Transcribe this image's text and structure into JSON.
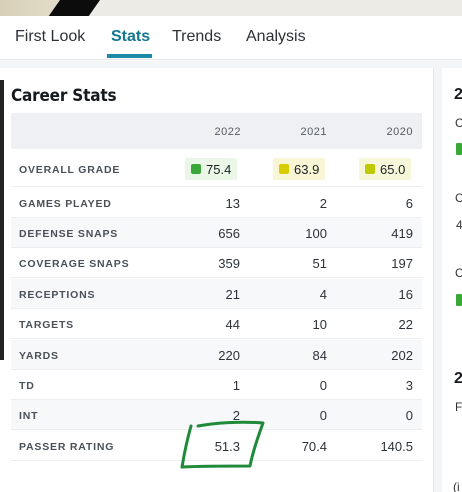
{
  "tabs": [
    {
      "label": "First Look"
    },
    {
      "label": "Stats"
    },
    {
      "label": "Trends"
    },
    {
      "label": "Analysis"
    }
  ],
  "career_stats": {
    "title": "Career Stats",
    "years": [
      "2022",
      "2021",
      "2020"
    ],
    "overall_grade": {
      "label": "OVERALL GRADE",
      "values": [
        "75.4",
        "63.9",
        "65.0"
      ],
      "colors": [
        "#3aa838",
        "#d7cc00",
        "#bec900"
      ],
      "bg_colors": [
        "#eaf6e6",
        "#f8f6d4",
        "#f5f7d8"
      ]
    },
    "rows": [
      {
        "label": "GAMES PLAYED",
        "values": [
          "13",
          "2",
          "6"
        ]
      },
      {
        "label": "DEFENSE SNAPS",
        "values": [
          "656",
          "100",
          "419"
        ]
      },
      {
        "label": "COVERAGE SNAPS",
        "values": [
          "359",
          "51",
          "197"
        ]
      },
      {
        "label": "RECEPTIONS",
        "values": [
          "21",
          "4",
          "16"
        ]
      },
      {
        "label": "TARGETS",
        "values": [
          "44",
          "10",
          "22"
        ]
      },
      {
        "label": "YARDS",
        "values": [
          "220",
          "84",
          "202"
        ]
      },
      {
        "label": "TD",
        "values": [
          "1",
          "0",
          "3"
        ]
      },
      {
        "label": "INT",
        "values": [
          "2",
          "0",
          "0"
        ]
      },
      {
        "label": "PASSER RATING",
        "values": [
          "51.3",
          "70.4",
          "140.5"
        ]
      }
    ]
  },
  "side_panel": {
    "heading_char": "2",
    "letters": [
      "C",
      "C",
      "4",
      "C",
      "2",
      "F",
      "(i"
    ]
  },
  "accent_color": "#1b8aa6",
  "annotation_color": "#1f8a3a"
}
